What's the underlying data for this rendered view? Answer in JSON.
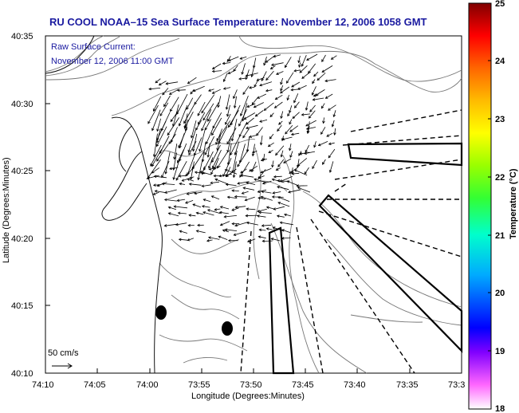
{
  "title": "RU COOL  NOAA–15  Sea Surface Temperature:  November 12, 2006 1058 GMT",
  "current_legend": {
    "line1": "Raw Surface Current:",
    "line2": "November 12, 2006 11:00 GMT"
  },
  "axes": {
    "xlabel": "Longitude (Degrees:Minutes)",
    "ylabel": "Latitude (Degrees:Minutes)",
    "xticks": [
      "74:10",
      "74:05",
      "74:00",
      "73:55",
      "73:50",
      "73:45",
      "73:40",
      "73:35",
      "73:3"
    ],
    "yticks": [
      "40:35",
      "40:30",
      "40:25",
      "40:20",
      "40:15",
      "40:10"
    ]
  },
  "scale": {
    "label": "50 cm/s"
  },
  "colorbar": {
    "label": "Temperature (°C)",
    "ticks": [
      "25",
      "24",
      "23",
      "22",
      "21",
      "20",
      "19",
      "18"
    ],
    "range": [
      18,
      25
    ],
    "colors": [
      "#ff00ff",
      "#0000ff",
      "#00bfff",
      "#00ff80",
      "#ffff00",
      "#ff8000",
      "#ff0000",
      "#800000"
    ]
  }
}
